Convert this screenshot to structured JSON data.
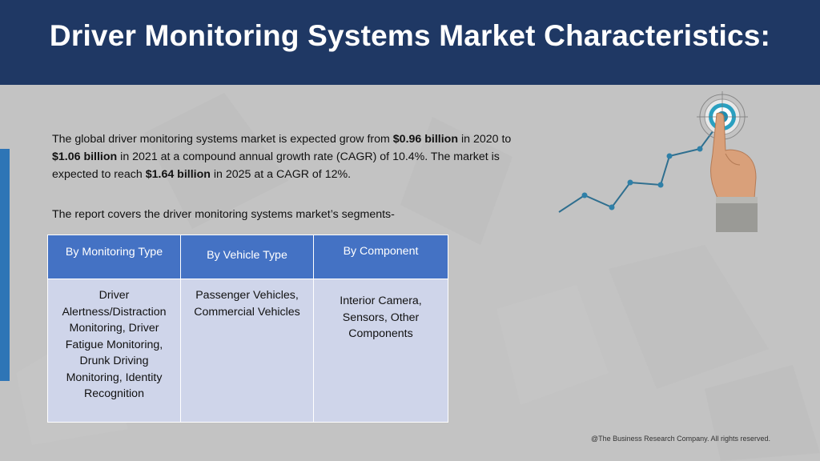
{
  "slide": {
    "title": "Driver Monitoring Systems Market Characteristics:",
    "paragraph1": {
      "t1": "The global driver monitoring systems market is expected grow from ",
      "b1": "$0.96 billion",
      "t2": " in 2020 to ",
      "b2": "$1.06 billion",
      "t3": " in 2021 at a compound annual growth rate (CAGR) of 10.4%. The market is expected to reach ",
      "b3": "$1.64 billion",
      "t4": " in 2025 at a CAGR of 12%."
    },
    "paragraph2": "The report covers the driver monitoring systems market’s segments-",
    "table": {
      "headers": [
        "By Monitoring Type",
        "By Vehicle Type",
        "By Component"
      ],
      "cells": [
        "Driver Alertness/Distraction Monitoring, Driver Fatigue Monitoring, Drunk Driving Monitoring, Identity Recognition",
        "Passenger Vehicles, Commercial Vehicles",
        "Interior Camera, Sensors, Other Components"
      ]
    },
    "footer": "@The Business Research Company. All rights reserved.",
    "colors": {
      "header_bg": "#1f3864",
      "table_header_bg": "#4472c4",
      "table_cell_bg": "#cfd5ea",
      "accent_bar": "#2e75b6",
      "background": "#c3c3c3"
    },
    "icons": [
      "growth-line-chart-icon",
      "target-icon",
      "pointing-hand-icon"
    ]
  }
}
